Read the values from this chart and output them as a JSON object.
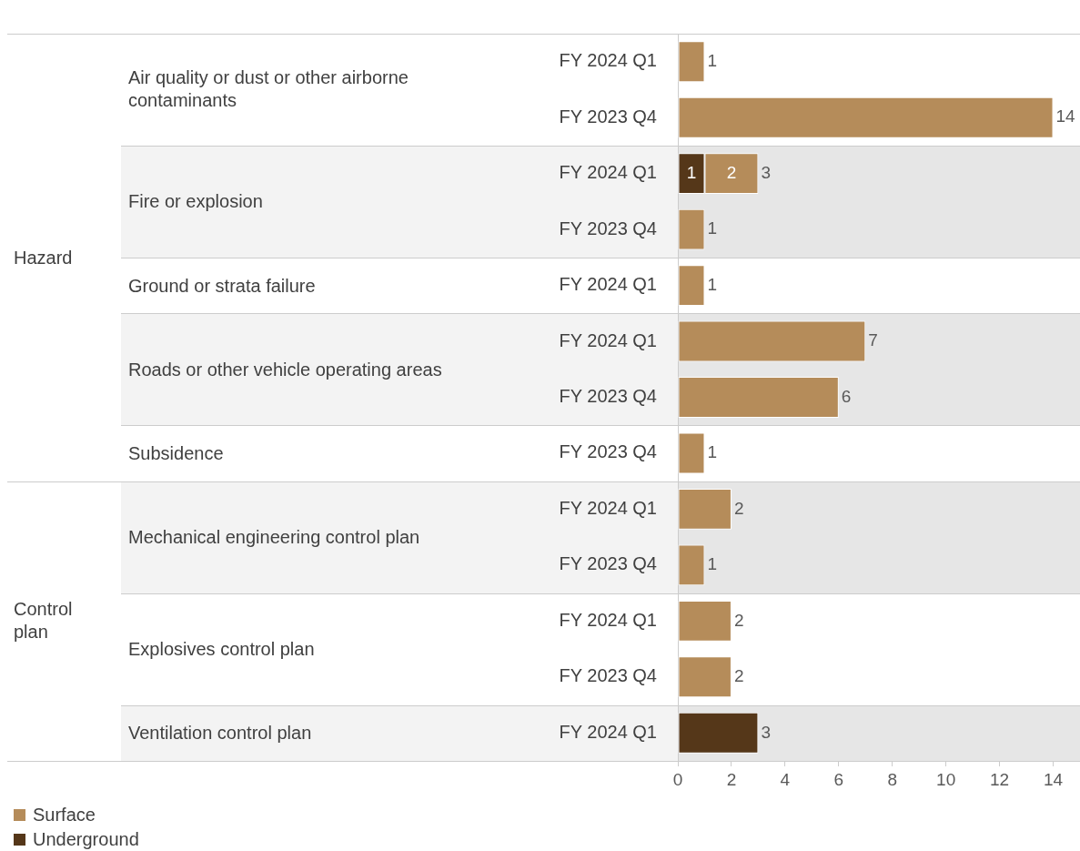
{
  "chart_data": {
    "type": "bar",
    "orientation": "horizontal",
    "stacked": true,
    "categories": [
      "FY 2024 Q1",
      "FY 2023 Q4",
      "FY 2024 Q1",
      "FY 2023 Q4",
      "FY 2024 Q1",
      "FY 2024 Q1",
      "FY 2023 Q4",
      "FY 2023 Q4",
      "FY 2024 Q1",
      "FY 2023 Q4",
      "FY 2024 Q1",
      "FY 2023 Q4",
      "FY 2024 Q1"
    ],
    "annotations": [
      "Hazard",
      "Air quality or dust or other airborne contaminants",
      "Fire or explosion",
      "Ground or strata failure",
      "Roads or other vehicle operating areas",
      "Subsidence",
      "Control plan",
      "Mechanical engineering control plan",
      "Explosives control plan",
      "Ventilation control plan"
    ],
    "series": [
      {
        "name": "Underground",
        "color": "#553719",
        "values": [
          null,
          null,
          1,
          null,
          null,
          null,
          null,
          null,
          null,
          null,
          null,
          null,
          3
        ]
      },
      {
        "name": "Surface",
        "color": "#b58c5a",
        "values": [
          1,
          14,
          2,
          1,
          1,
          7,
          6,
          1,
          2,
          1,
          2,
          2,
          null
        ]
      }
    ],
    "xlim": [
      0,
      15
    ],
    "xticks": [
      0,
      2,
      4,
      6,
      8,
      10,
      12,
      14
    ],
    "data_labels": true,
    "totals": [
      null,
      null,
      "3",
      null,
      null,
      null,
      null,
      null,
      null,
      null,
      null,
      null,
      null
    ],
    "legend": "bottom left"
  }
}
